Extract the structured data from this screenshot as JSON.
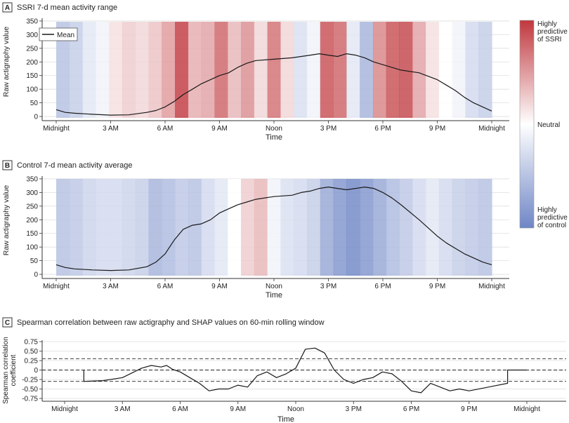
{
  "chart_data": [
    {
      "panel": "A",
      "type": "line",
      "title": "SSRI 7-d mean activity range",
      "xlabel": "Time",
      "ylabel": "Raw actigraphy value",
      "x_ticks": [
        "Midnight",
        "3 AM",
        "6 AM",
        "9 AM",
        "Noon",
        "3 PM",
        "6 PM",
        "9 PM",
        "Midnight"
      ],
      "x_range_hours": [
        0,
        24
      ],
      "y_ticks": [
        0,
        50,
        100,
        150,
        200,
        250,
        300,
        350
      ],
      "ylim": [
        -5,
        355
      ],
      "legend": {
        "placement": "top-left",
        "entries": [
          "Mean"
        ]
      },
      "series": [
        {
          "name": "Mean",
          "hours": [
            0,
            0.5,
            1,
            2,
            3,
            4,
            5,
            5.5,
            6,
            6.5,
            7,
            7.5,
            8,
            8.5,
            9,
            9.5,
            10,
            10.5,
            11,
            12,
            13,
            14,
            14.5,
            15,
            15.5,
            16,
            16.5,
            17,
            17.5,
            18,
            18.5,
            19,
            20,
            21,
            21.5,
            22,
            22.5,
            23,
            23.5,
            24
          ],
          "values": [
            25,
            15,
            12,
            8,
            5,
            6,
            15,
            22,
            35,
            55,
            80,
            100,
            120,
            135,
            150,
            160,
            180,
            195,
            205,
            210,
            215,
            225,
            230,
            225,
            220,
            230,
            225,
            215,
            200,
            190,
            180,
            170,
            160,
            135,
            115,
            95,
            70,
            50,
            35,
            20
          ]
        }
      ],
      "shap_heat": [
        -0.5,
        -0.4,
        -0.2,
        -0.1,
        0.15,
        0.25,
        0.2,
        0.3,
        0.5,
        0.95,
        0.4,
        0.45,
        0.75,
        0.35,
        0.55,
        0.2,
        0.7,
        0.2,
        -0.25,
        -0.1,
        0.85,
        0.75,
        -0.2,
        -0.6,
        0.6,
        0.85,
        0.9,
        0.45,
        0.15,
        0,
        -0.1,
        -0.3,
        -0.4
      ]
    },
    {
      "panel": "B",
      "type": "line",
      "title": "Control 7-d mean activity average",
      "xlabel": "Time",
      "ylabel": "Raw actigraphy value",
      "x_ticks": [
        "Midnight",
        "3 AM",
        "6 AM",
        "9 AM",
        "Noon",
        "3 PM",
        "6 PM",
        "9 PM",
        "Midnight"
      ],
      "x_range_hours": [
        0,
        24
      ],
      "y_ticks": [
        0,
        50,
        100,
        150,
        200,
        250,
        300,
        350
      ],
      "ylim": [
        -5,
        355
      ],
      "series": [
        {
          "name": "Mean",
          "hours": [
            0,
            0.5,
            1,
            2,
            3,
            4,
            5,
            5.5,
            6,
            6.5,
            7,
            7.5,
            8,
            8.5,
            9,
            9.5,
            10,
            10.5,
            11,
            12,
            13,
            13.5,
            14,
            14.5,
            15,
            15.5,
            16,
            16.5,
            17,
            17.5,
            18,
            18.5,
            19,
            20,
            21,
            21.5,
            22,
            22.5,
            23,
            23.5,
            24
          ],
          "values": [
            35,
            25,
            20,
            16,
            14,
            16,
            28,
            45,
            75,
            125,
            165,
            180,
            185,
            200,
            225,
            240,
            255,
            265,
            275,
            285,
            290,
            300,
            305,
            315,
            320,
            315,
            310,
            315,
            320,
            315,
            300,
            280,
            255,
            200,
            140,
            115,
            95,
            75,
            60,
            45,
            35
          ]
        }
      ],
      "shap_heat": [
        -0.5,
        -0.45,
        -0.35,
        -0.3,
        -0.3,
        -0.35,
        -0.4,
        -0.6,
        -0.55,
        -0.45,
        -0.5,
        -0.3,
        -0.2,
        0,
        0.25,
        0.35,
        -0.1,
        -0.25,
        -0.3,
        -0.4,
        -0.7,
        -0.85,
        -0.95,
        -0.85,
        -0.7,
        -0.55,
        -0.45,
        -0.3,
        -0.2,
        -0.3,
        -0.4,
        -0.45,
        -0.5
      ]
    },
    {
      "panel": "C",
      "type": "line",
      "title": "Spearman correlation between raw actigraphy and SHAP values on 60-min rolling window",
      "xlabel": "Time",
      "ylabel": "Spearman correlation coefficient",
      "ylabel_lines": [
        "Spearman correlation",
        "coefficient"
      ],
      "x_ticks": [
        "Midnight",
        "3 AM",
        "6 AM",
        "9 AM",
        "Noon",
        "3 PM",
        "6 PM",
        "9 PM",
        "Midnight"
      ],
      "x_range_hours": [
        0,
        24
      ],
      "y_ticks": [
        "0.75",
        "0.50",
        "0.25",
        "0",
        "-0.25",
        "-0.50",
        "-0.75"
      ],
      "ylim": [
        -0.75,
        0.75
      ],
      "reference_lines": [
        0.3,
        0,
        -0.3
      ],
      "series": [
        {
          "name": "Spearman correlation",
          "hours": [
            1,
            1,
            2,
            3,
            4,
            4.5,
            5,
            5.3,
            5.6,
            6,
            6.5,
            7,
            7.5,
            8,
            8.5,
            9,
            9.5,
            10,
            10.5,
            11,
            11.5,
            12,
            12.5,
            13,
            13.5,
            14,
            14.5,
            15,
            15.5,
            16,
            16.5,
            17,
            17.5,
            18,
            18.5,
            19,
            19.5,
            20,
            20.5,
            21,
            22,
            23,
            23,
            24
          ],
          "values": [
            0,
            -0.3,
            -0.28,
            -0.2,
            0.05,
            0.12,
            0.08,
            0.12,
            0.02,
            -0.05,
            -0.2,
            -0.35,
            -0.55,
            -0.5,
            -0.5,
            -0.4,
            -0.45,
            -0.15,
            -0.05,
            -0.2,
            -0.1,
            0.05,
            0.55,
            0.58,
            0.45,
            0,
            -0.25,
            -0.35,
            -0.25,
            -0.2,
            -0.05,
            -0.1,
            -0.3,
            -0.55,
            -0.6,
            -0.35,
            -0.45,
            -0.55,
            -0.5,
            -0.55,
            -0.45,
            -0.35,
            0,
            0
          ]
        }
      ]
    }
  ],
  "colorbar": {
    "top_label_lines": [
      "Highly",
      "predictive",
      "of SSRI"
    ],
    "middle_label": "Neutral",
    "bottom_label_lines": [
      "Highly",
      "predictive",
      "of control"
    ],
    "colors": {
      "top": "#c0383e",
      "middle": "#ffffff",
      "bottom": "#6f86c6"
    }
  },
  "colors": {
    "line": "#1a1a1a",
    "grid": "#dddddd",
    "axis": "#333333"
  }
}
